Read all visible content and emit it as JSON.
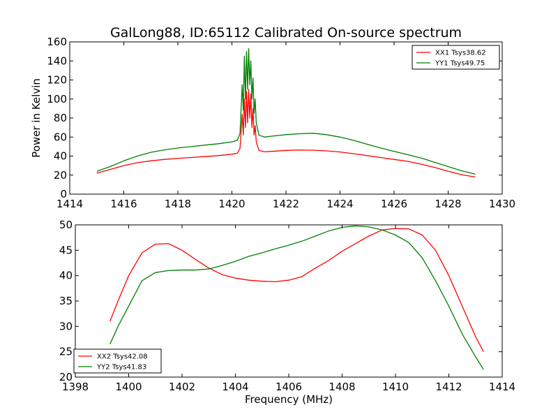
{
  "title": "GalLong88, ID:65112 Calibrated On-source spectrum",
  "colors": {
    "xx": "#ff0000",
    "yy": "#008000"
  },
  "chart_data": [
    {
      "type": "line",
      "panel": "top",
      "title": "GalLong88, ID:65112 Calibrated On-source spectrum",
      "xlabel": "",
      "ylabel": "Power in Kelvin",
      "xlim": [
        1414,
        1430
      ],
      "ylim": [
        0,
        160
      ],
      "xticks": [
        "1414",
        "1416",
        "1418",
        "1420",
        "1422",
        "1424",
        "1426",
        "1428",
        "1430"
      ],
      "yticks": [
        "0",
        "20",
        "40",
        "60",
        "80",
        "100",
        "120",
        "140",
        "160"
      ],
      "legend_position": "top-right",
      "grid": false,
      "series": [
        {
          "name": "XX1 Tsys38.62",
          "color": "#ff0000",
          "x": [
            1415.0,
            1415.5,
            1416.0,
            1416.5,
            1417.0,
            1417.5,
            1418.0,
            1418.5,
            1419.0,
            1419.5,
            1420.0,
            1420.2,
            1420.3,
            1420.38,
            1420.42,
            1420.46,
            1420.5,
            1420.54,
            1420.58,
            1420.62,
            1420.66,
            1420.7,
            1420.74,
            1420.78,
            1420.82,
            1420.86,
            1420.9,
            1421.0,
            1421.2,
            1421.5,
            1422.0,
            1422.5,
            1423.0,
            1423.5,
            1424.0,
            1424.5,
            1425.0,
            1425.5,
            1426.0,
            1426.5,
            1427.0,
            1427.5,
            1428.0,
            1428.5,
            1429.0
          ],
          "y": [
            22,
            26,
            30,
            33,
            35,
            36.5,
            37.5,
            38.5,
            39.5,
            40.5,
            42,
            43,
            48,
            84,
            62,
            100,
            70,
            108,
            75,
            110,
            80,
            105,
            70,
            90,
            62,
            72,
            55,
            46,
            44.5,
            45,
            46,
            46.3,
            46.2,
            45.5,
            44.3,
            42.5,
            40.5,
            38.5,
            36.5,
            34.5,
            31.5,
            28,
            24,
            20.5,
            18
          ]
        },
        {
          "name": "YY1 Tsys49.75",
          "color": "#008000",
          "x": [
            1415.0,
            1415.5,
            1416.0,
            1416.5,
            1417.0,
            1417.5,
            1418.0,
            1418.5,
            1419.0,
            1419.5,
            1420.0,
            1420.2,
            1420.3,
            1420.38,
            1420.42,
            1420.46,
            1420.5,
            1420.54,
            1420.58,
            1420.62,
            1420.66,
            1420.7,
            1420.74,
            1420.78,
            1420.82,
            1420.86,
            1420.9,
            1421.0,
            1421.2,
            1421.5,
            1422.0,
            1422.5,
            1423.0,
            1423.5,
            1424.0,
            1424.5,
            1425.0,
            1425.5,
            1426.0,
            1426.5,
            1427.0,
            1427.5,
            1428.0,
            1428.5,
            1429.0
          ],
          "y": [
            24,
            29,
            35,
            40,
            44,
            46.5,
            48.5,
            50,
            51.5,
            53,
            55,
            56.5,
            64,
            115,
            88,
            145,
            100,
            150,
            110,
            153,
            115,
            140,
            100,
            122,
            85,
            100,
            75,
            62,
            60,
            61,
            62.5,
            63.5,
            64,
            62.5,
            60,
            56.5,
            52.5,
            48.5,
            45,
            41.5,
            38,
            33.5,
            29,
            24.5,
            21
          ]
        }
      ]
    },
    {
      "type": "line",
      "panel": "bottom",
      "title": "",
      "xlabel": "Frequency (MHz)",
      "ylabel": "",
      "xlim": [
        1398,
        1414
      ],
      "ylim": [
        20,
        50
      ],
      "xticks": [
        "1398",
        "1400",
        "1402",
        "1404",
        "1406",
        "1408",
        "1410",
        "1412",
        "1414"
      ],
      "yticks": [
        "20",
        "25",
        "30",
        "35",
        "40",
        "45",
        "50"
      ],
      "legend_position": "bottom-left",
      "grid": false,
      "series": [
        {
          "name": "XX2 Tsys42.08",
          "color": "#ff0000",
          "x": [
            1399.3,
            1399.6,
            1400.0,
            1400.5,
            1401.0,
            1401.5,
            1402.0,
            1402.5,
            1403.0,
            1403.5,
            1404.0,
            1404.5,
            1405.0,
            1405.5,
            1406.0,
            1406.5,
            1407.0,
            1407.5,
            1408.0,
            1408.5,
            1409.0,
            1409.5,
            1410.0,
            1410.5,
            1411.0,
            1411.5,
            1412.0,
            1412.5,
            1413.0,
            1413.3
          ],
          "y": [
            31,
            35,
            40,
            44.5,
            46.2,
            46.3,
            45,
            43.2,
            41.5,
            40.2,
            39.5,
            39.1,
            38.9,
            38.8,
            39.1,
            39.8,
            41.5,
            43,
            44.8,
            46.3,
            47.8,
            49,
            49.3,
            49.2,
            48,
            45,
            40,
            34,
            28,
            25
          ]
        },
        {
          "name": "YY2 Tsys41.83",
          "color": "#008000",
          "x": [
            1399.3,
            1399.6,
            1400.0,
            1400.5,
            1401.0,
            1401.5,
            1402.0,
            1402.5,
            1403.0,
            1403.5,
            1404.0,
            1404.5,
            1405.0,
            1405.5,
            1406.0,
            1406.5,
            1407.0,
            1407.5,
            1408.0,
            1408.5,
            1409.0,
            1409.5,
            1410.0,
            1410.5,
            1411.0,
            1411.5,
            1412.0,
            1412.5,
            1413.0,
            1413.3
          ],
          "y": [
            26.5,
            30,
            34,
            39,
            40.6,
            41,
            41.1,
            41.1,
            41.3,
            42,
            42.8,
            43.8,
            44.5,
            45.3,
            46,
            46.8,
            47.8,
            48.8,
            49.5,
            49.8,
            49.6,
            49,
            48,
            46.5,
            43.5,
            39,
            34,
            28.5,
            24,
            21.5
          ]
        }
      ]
    }
  ]
}
